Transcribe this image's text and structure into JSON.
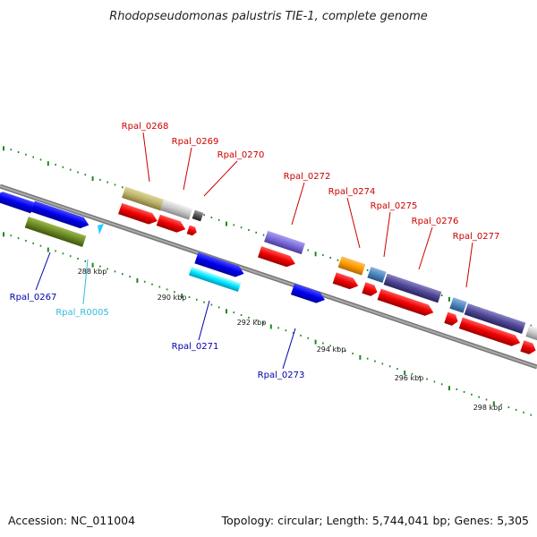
{
  "title": "Rhodopseudomonas palustris TIE-1, complete genome",
  "footer": {
    "accession": "Accession: NC_011004",
    "topology": "Topology: circular; Length: 5,744,041 bp; Genes: 5,305"
  },
  "colors": {
    "label_forward": "#cc0000",
    "label_reverse": "#0000aa",
    "label_rna": "#33bbdd",
    "backbone": "#888888",
    "gc_dots": "#1a8a1a"
  },
  "ticks": [
    "288 kbp",
    "290 kbp",
    "292 kbp",
    "294 kbp",
    "296 kbp",
    "298 kbp"
  ],
  "labels": {
    "Rpal_0267": "Rpal_0267",
    "Rpal_R0005": "Rpal_R0005",
    "Rpal_0268": "Rpal_0268",
    "Rpal_0269": "Rpal_0269",
    "Rpal_0270": "Rpal_0270",
    "Rpal_0271": "Rpal_0271",
    "Rpal_0272": "Rpal_0272",
    "Rpal_0273": "Rpal_0273",
    "Rpal_0274": "Rpal_0274",
    "Rpal_0275": "Rpal_0275",
    "Rpal_0276": "Rpal_0276",
    "Rpal_0277": "Rpal_0277"
  }
}
